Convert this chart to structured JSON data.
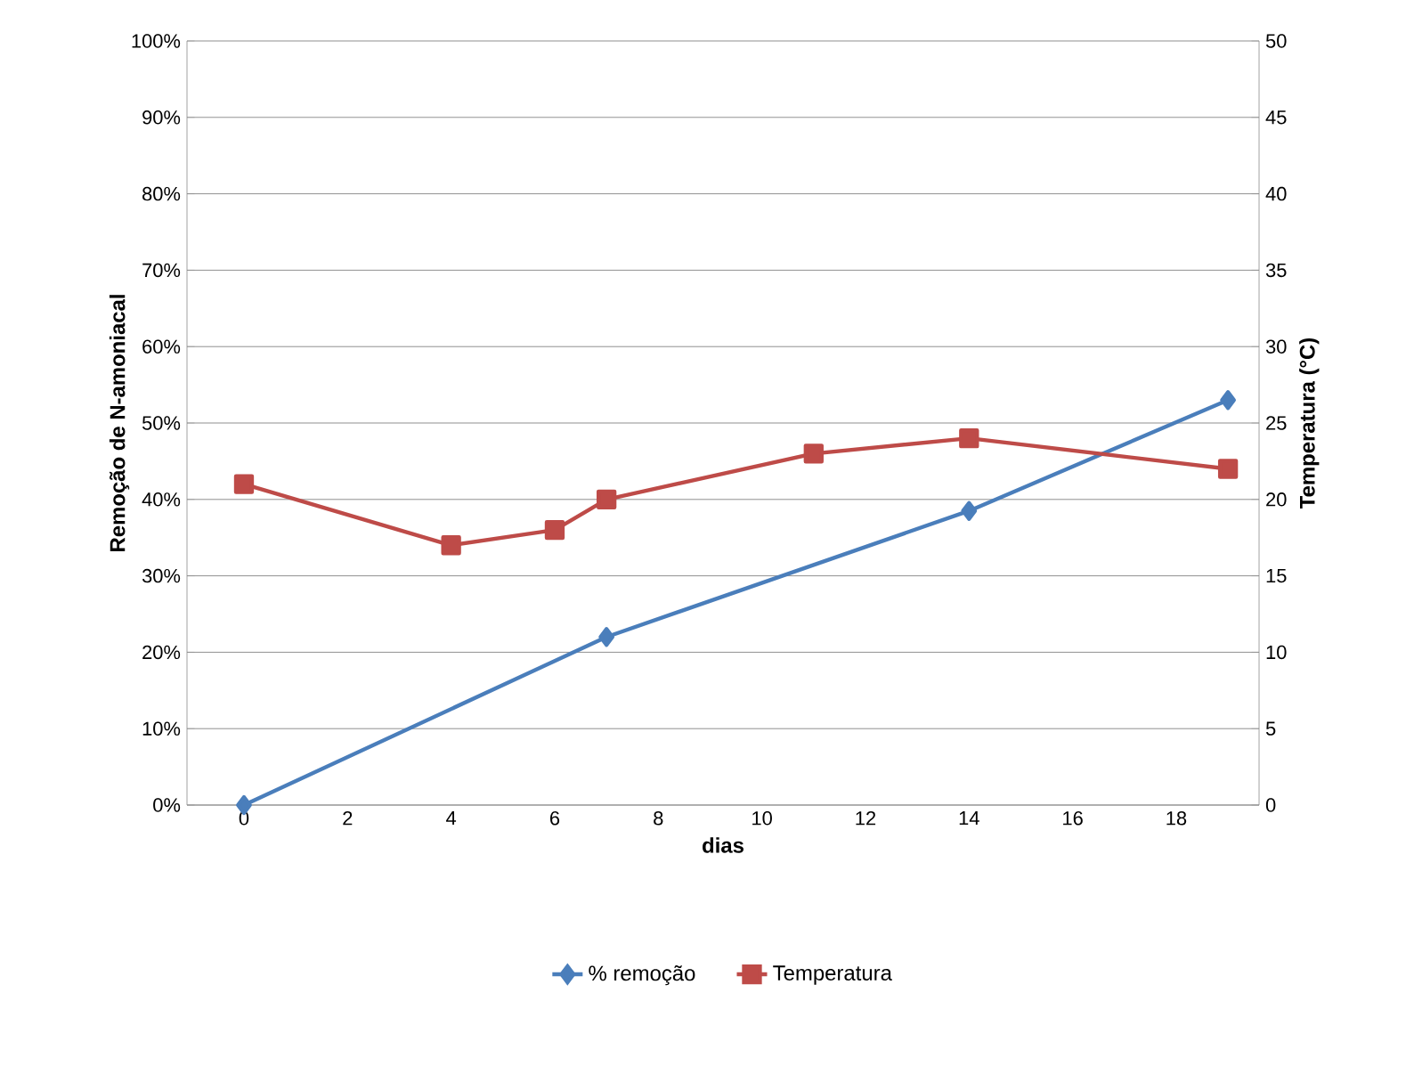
{
  "chart_data": {
    "type": "line",
    "xlabel": "dias",
    "ylabel": "Remoção de N-amoniacal",
    "y2label": "Temperatura (°C)",
    "series": [
      {
        "name": "% remoção",
        "color": "#4a7ebb",
        "marker": "diamond",
        "x": [
          0,
          7,
          14,
          19
        ],
        "values": [
          0,
          22,
          38.5,
          53
        ]
      },
      {
        "name": "Temperatura",
        "color": "#be4b48",
        "marker": "square",
        "axis": "y2",
        "x": [
          0,
          4,
          6,
          7,
          11,
          14,
          19
        ],
        "values": [
          21,
          17,
          18,
          20,
          23,
          24,
          22
        ]
      }
    ],
    "xlim": [
      -1.1,
      19.6
    ],
    "xticks": [
      0,
      2,
      4,
      6,
      8,
      10,
      12,
      14,
      16,
      18
    ],
    "ylim": [
      0,
      100
    ],
    "yticks": [
      {
        "value": 0,
        "label": "0%"
      },
      {
        "value": 10,
        "label": "10%"
      },
      {
        "value": 20,
        "label": "20%"
      },
      {
        "value": 30,
        "label": "30%"
      },
      {
        "value": 40,
        "label": "40%"
      },
      {
        "value": 50,
        "label": "50%"
      },
      {
        "value": 60,
        "label": "60%"
      },
      {
        "value": 70,
        "label": "70%"
      },
      {
        "value": 80,
        "label": "80%"
      },
      {
        "value": 90,
        "label": "90%"
      },
      {
        "value": 100,
        "label": "100%"
      }
    ],
    "y2lim": [
      0,
      50
    ],
    "y2ticks": [
      0,
      5,
      10,
      15,
      20,
      25,
      30,
      35,
      40,
      45,
      50
    ],
    "grid": "y",
    "legend": "bottom"
  }
}
